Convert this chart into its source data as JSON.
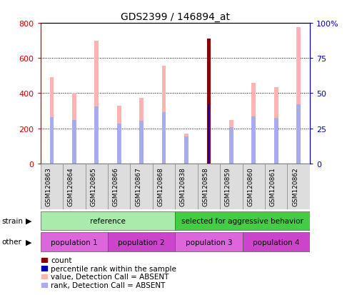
{
  "title": "GDS2399 / 146894_at",
  "samples": [
    "GSM120863",
    "GSM120864",
    "GSM120865",
    "GSM120866",
    "GSM120867",
    "GSM120868",
    "GSM120838",
    "GSM120858",
    "GSM120859",
    "GSM120860",
    "GSM120861",
    "GSM120862"
  ],
  "value_absent": [
    490,
    400,
    700,
    330,
    375,
    555,
    170,
    0,
    248,
    460,
    435,
    775
  ],
  "rank_absent": [
    265,
    248,
    325,
    228,
    242,
    292,
    155,
    0,
    205,
    268,
    258,
    335
  ],
  "count_present": [
    0,
    0,
    0,
    0,
    0,
    0,
    0,
    710,
    0,
    0,
    0,
    0
  ],
  "percentile_present": [
    0,
    0,
    0,
    0,
    0,
    0,
    0,
    338,
    0,
    0,
    0,
    0
  ],
  "ylim_left": [
    0,
    800
  ],
  "ylim_right": [
    0,
    100
  ],
  "yticks_left": [
    0,
    200,
    400,
    600,
    800
  ],
  "yticks_right": [
    0,
    25,
    50,
    75,
    100
  ],
  "left_tick_labels": [
    "0",
    "200",
    "400",
    "600",
    "800"
  ],
  "right_tick_labels": [
    "0",
    "25",
    "50",
    "75",
    "100%"
  ],
  "color_value_absent": "#ffb3b3",
  "color_rank_absent": "#aaaaee",
  "color_count": "#880000",
  "color_percentile": "#0000bb",
  "strain_groups": [
    {
      "label": "reference",
      "start": 0,
      "end": 6,
      "color": "#aaeaaa"
    },
    {
      "label": "selected for aggressive behavior",
      "start": 6,
      "end": 12,
      "color": "#44cc44"
    }
  ],
  "other_groups": [
    {
      "label": "population 1",
      "start": 0,
      "end": 3,
      "color": "#dd66dd"
    },
    {
      "label": "population 2",
      "start": 3,
      "end": 6,
      "color": "#cc44cc"
    },
    {
      "label": "population 3",
      "start": 6,
      "end": 9,
      "color": "#dd66dd"
    },
    {
      "label": "population 4",
      "start": 9,
      "end": 12,
      "color": "#cc44cc"
    }
  ],
  "background_color": "#ffffff",
  "axis_label_color_left": "#cc0000",
  "axis_label_color_right": "#0000cc",
  "bar_width": 0.18,
  "rank_bar_width": 0.18,
  "count_bar_width": 0.18
}
